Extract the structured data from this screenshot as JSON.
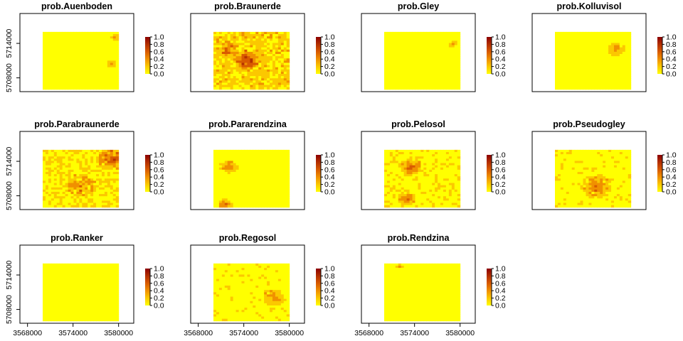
{
  "chart_data": {
    "type": "heatmap",
    "panels": [
      {
        "title": "prob.Auenboden"
      },
      {
        "title": "prob.Braunerde"
      },
      {
        "title": "prob.Gley"
      },
      {
        "title": "prob.Kolluvisol"
      },
      {
        "title": "prob.Parabraunerde"
      },
      {
        "title": "prob.Pararendzina"
      },
      {
        "title": "prob.Pelosol"
      },
      {
        "title": "prob.Pseudogley"
      },
      {
        "title": "prob.Ranker"
      },
      {
        "title": "prob.Regosol"
      },
      {
        "title": "prob.Rendzina"
      }
    ],
    "x_ticks": [
      "3568000",
      "3574000",
      "3580000"
    ],
    "y_ticks": [
      "5708000",
      "5714000"
    ],
    "x_range": [
      3567000,
      3582000
    ],
    "y_range": [
      5705600,
      5719200
    ],
    "raster_extent": {
      "x": [
        3570000,
        3580000
      ],
      "y": [
        5706000,
        5716000
      ]
    },
    "legend": {
      "ticks": [
        "0.0",
        "0.2",
        "0.4",
        "0.6",
        "0.8",
        "1.0"
      ],
      "range": [
        0,
        1
      ],
      "colors": [
        "#ffff00",
        "#fbc800",
        "#f09000",
        "#d85a00",
        "#b43000",
        "#8b0000"
      ],
      "placement": "right of each panel"
    }
  }
}
